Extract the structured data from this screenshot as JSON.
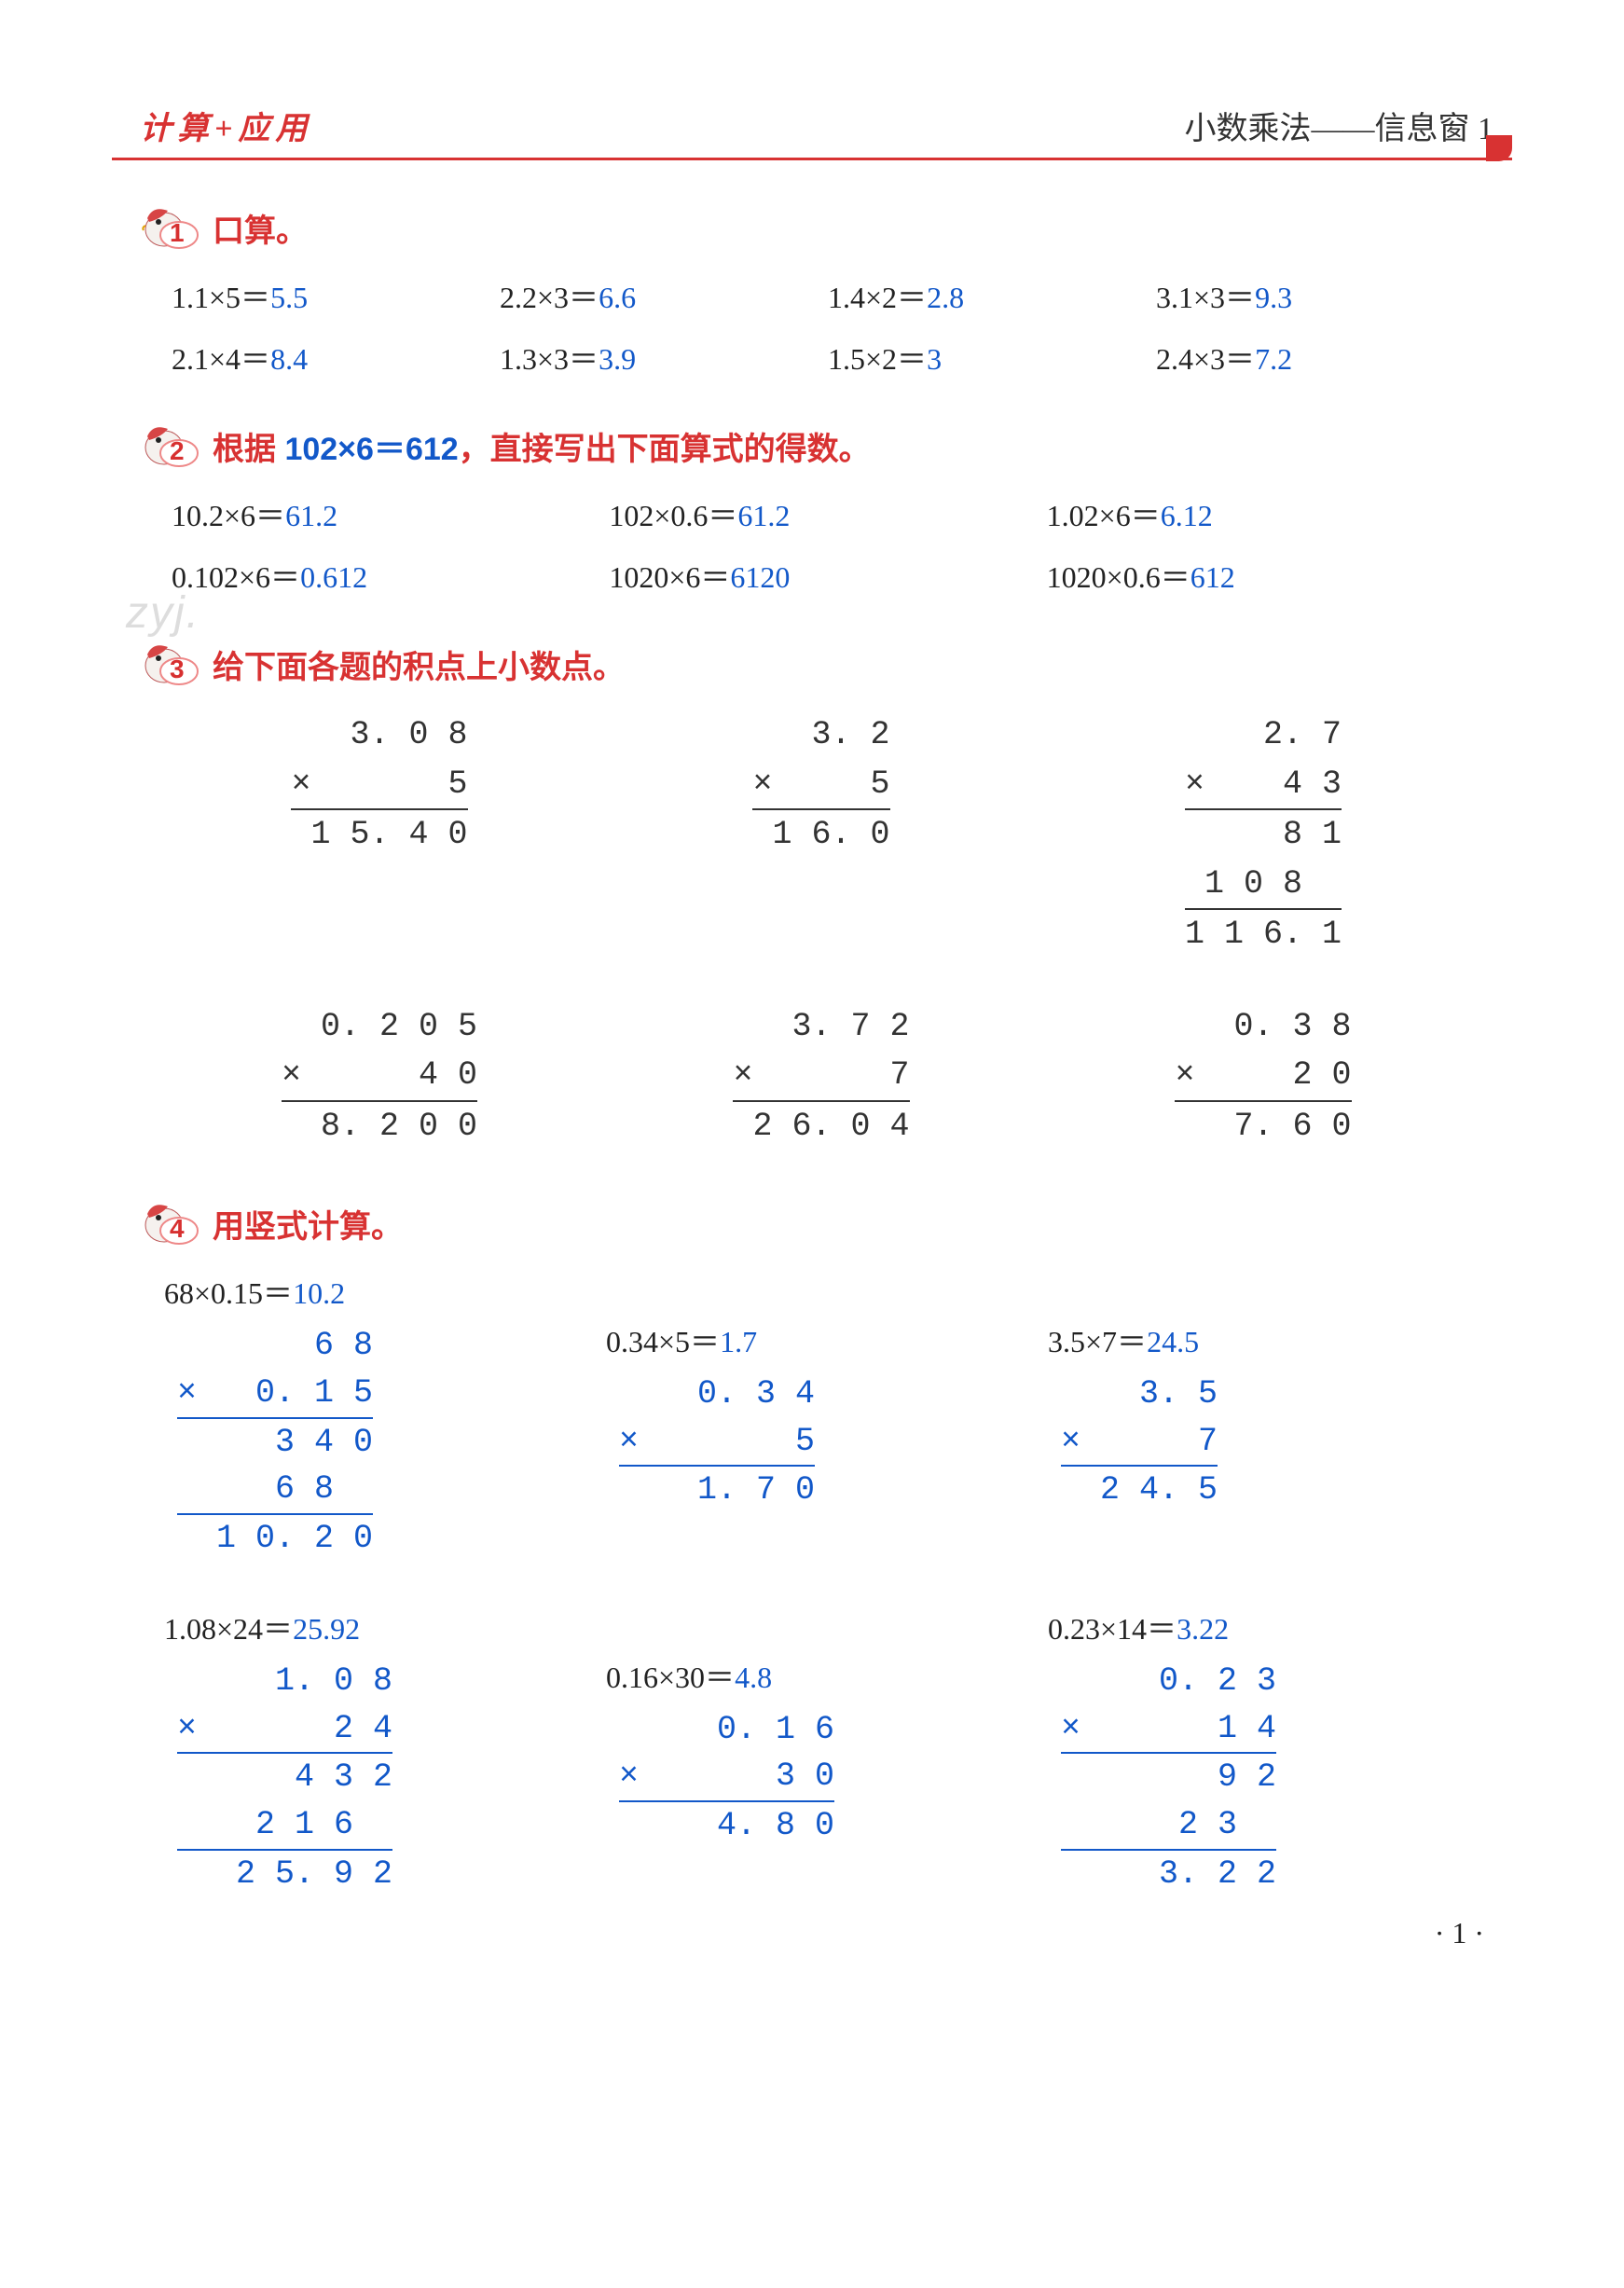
{
  "colors": {
    "accent_red": "#d83232",
    "answer_blue": "#1258c9",
    "text_black": "#222222",
    "background": "#ffffff",
    "watermark_gray": "rgba(120,120,120,0.25)"
  },
  "typography": {
    "body_fontsize_pt": 24,
    "title_fontsize_pt": 25,
    "family_cn_serif": "SimSun",
    "family_cn_hei": "SimHei"
  },
  "header": {
    "left": "计算+应用",
    "right": "小数乘法——信息窗 1"
  },
  "watermark": "zyj.",
  "page_number": "· 1 ·",
  "sections": {
    "s1": {
      "num": "1",
      "title": "口算。",
      "rows": [
        [
          {
            "expr": "1.1×5＝",
            "ans": "5.5"
          },
          {
            "expr": "2.2×3＝",
            "ans": "6.6"
          },
          {
            "expr": "1.4×2＝",
            "ans": "2.8"
          },
          {
            "expr": "3.1×3＝",
            "ans": "9.3"
          }
        ],
        [
          {
            "expr": "2.1×4＝",
            "ans": "8.4"
          },
          {
            "expr": "1.3×3＝",
            "ans": "3.9"
          },
          {
            "expr": "1.5×2＝",
            "ans": "3"
          },
          {
            "expr": "2.4×3＝",
            "ans": "7.2"
          }
        ]
      ]
    },
    "s2": {
      "num": "2",
      "title_pre": "根据 ",
      "title_hl": "102×6＝612",
      "title_post": "，直接写出下面算式的得数。",
      "rows": [
        [
          {
            "expr": "10.2×6＝",
            "ans": "61.2"
          },
          {
            "expr": "102×0.6＝",
            "ans": "61.2"
          },
          {
            "expr": "1.02×6＝",
            "ans": "6.12"
          }
        ],
        [
          {
            "expr": "0.102×6＝",
            "ans": "0.612"
          },
          {
            "expr": "1020×6＝",
            "ans": "6120"
          },
          {
            "expr": "1020×0.6＝",
            "ans": "612"
          }
        ]
      ]
    },
    "s3": {
      "num": "3",
      "title": "给下面各题的积点上小数点。",
      "group1": [
        {
          "top": "3. 0 8",
          "mul": "×       5",
          "res": "1 5. 4 0",
          "partials": []
        },
        {
          "top": "3. 2",
          "mul": "×     5",
          "res": "1 6. 0",
          "partials": []
        },
        {
          "top": "2. 7",
          "mul": "×    4 3",
          "res": "1 1 6. 1",
          "partials": [
            "8 1",
            "1 0 8  "
          ]
        }
      ],
      "group2": [
        {
          "top": "0. 2 0 5",
          "mul": "×      4 0",
          "res": "8. 2 0 0",
          "partials": []
        },
        {
          "top": "3. 7 2",
          "mul": "×       7",
          "res": "2 6. 0 4",
          "partials": []
        },
        {
          "top": "0. 3 8",
          "mul": "×     2 0",
          "res": "7. 6 0",
          "partials": []
        }
      ]
    },
    "s4": {
      "num": "4",
      "title": "用竖式计算。",
      "group1": [
        {
          "head_expr": "68×0.15＝",
          "head_ans": "10.2",
          "lines": [
            "6 8",
            "×   0. 1 5"
          ],
          "parts": [
            "3 4 0",
            "6 8  "
          ],
          "res": "1 0. 2 0"
        },
        {
          "head_expr": "0.34×5＝",
          "head_ans": "1.7",
          "lines": [
            "0. 3 4",
            "×        5"
          ],
          "parts": [],
          "res": "1. 7 0"
        },
        {
          "head_expr": "3.5×7＝",
          "head_ans": "24.5",
          "lines": [
            "3. 5",
            "×      7"
          ],
          "parts": [],
          "res": "2 4. 5"
        }
      ],
      "group2": [
        {
          "head_expr": "1.08×24＝",
          "head_ans": "25.92",
          "lines": [
            "1. 0 8",
            "×       2 4"
          ],
          "parts": [
            "4 3 2",
            "2 1 6  "
          ],
          "res": "2 5. 9 2"
        },
        {
          "head_expr": "0.16×30＝",
          "head_ans": "4.8",
          "lines": [
            "0. 1 6",
            "×       3 0"
          ],
          "parts": [],
          "res": "4. 8 0"
        },
        {
          "head_expr": "0.23×14＝",
          "head_ans": "3.22",
          "lines": [
            "0. 2 3",
            "×       1 4"
          ],
          "parts": [
            "9 2",
            "2 3  "
          ],
          "res": "3. 2 2"
        }
      ]
    }
  }
}
